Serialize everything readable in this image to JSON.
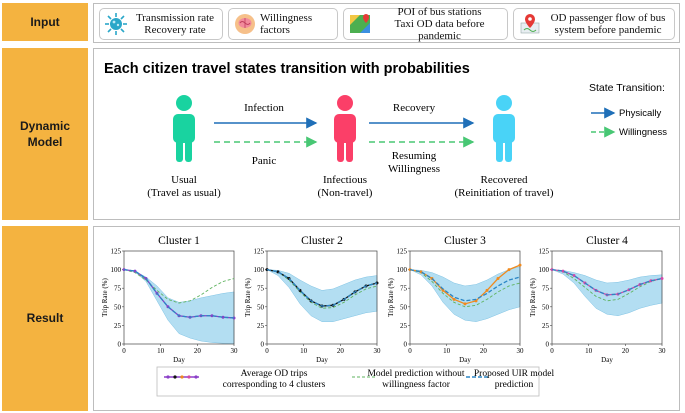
{
  "labels": {
    "input": "Input",
    "dynamic_model": "Dynamic Model",
    "result": "Result"
  },
  "inputs": [
    {
      "icon": "virus-icon",
      "line1": "Transmission rate",
      "line2": "Recovery rate"
    },
    {
      "icon": "brain-icon",
      "line1": "Willingness factors",
      "line2": ""
    },
    {
      "icon": "map-icon",
      "line1": "POI of bus stations",
      "line2": "Taxi OD data before pandemic"
    },
    {
      "icon": "location-pin-icon",
      "line1": "OD passenger flow of bus",
      "line2": "system before pandemic"
    }
  ],
  "model": {
    "title": "Each citizen travel states transition with probabilities",
    "states": [
      {
        "name": "Usual",
        "sub": "(Travel as usual)",
        "color": "#19d3a0"
      },
      {
        "name": "Infectious",
        "sub": "(Non-travel)",
        "color": "#fb3f68"
      },
      {
        "name": "Recovered",
        "sub": "(Reinitiation of travel)",
        "color": "#49d3f7"
      }
    ],
    "transitions": {
      "infection": "Infection",
      "panic": "Panic",
      "recovery": "Recovery",
      "resuming_line1": "Resuming",
      "resuming_line2": "Willingness"
    },
    "legend": {
      "title": "State Transition:",
      "physically": "Physically",
      "willingness": "Willingness"
    },
    "colors": {
      "physical": "#1f6fb8",
      "willingness": "#48c774"
    }
  },
  "legend_result": {
    "avg_line1": "Average OD trips",
    "avg_line2": "corresponding to 4 clusters",
    "pred_line1": "Model prediction without",
    "pred_line2": "willingness factor",
    "uir_line1": "Proposed UIR model",
    "uir_line2": "prediction"
  },
  "chart_data": [
    {
      "type": "line",
      "title": "Cluster 1",
      "xlabel": "Day",
      "ylabel": "Trip Rate (%)",
      "xlim": [
        0,
        30
      ],
      "ylim": [
        0,
        125
      ],
      "xticks": [
        0,
        10,
        20,
        30
      ],
      "yticks": [
        0,
        25,
        50,
        75,
        100,
        125
      ],
      "avg_color": "#8b3fc8",
      "series": [
        {
          "name": "Average OD trips",
          "x": [
            0,
            3,
            6,
            9,
            12,
            15,
            18,
            21,
            24,
            27,
            30
          ],
          "values": [
            100,
            98,
            88,
            68,
            50,
            38,
            36,
            38,
            38,
            36,
            35
          ]
        },
        {
          "name": "Model prediction without willingness factor",
          "x": [
            0,
            3,
            6,
            9,
            12,
            15,
            18,
            21,
            24,
            27,
            30
          ],
          "values": [
            100,
            96,
            86,
            72,
            60,
            55,
            58,
            66,
            76,
            84,
            88
          ]
        },
        {
          "name": "Proposed UIR model prediction",
          "x": [
            0,
            3,
            6,
            9,
            12,
            15,
            18,
            21,
            24,
            27,
            30
          ],
          "values": [
            100,
            98,
            88,
            68,
            50,
            38,
            36,
            38,
            38,
            36,
            35
          ]
        }
      ],
      "band": {
        "upper": [
          100,
          98,
          90,
          78,
          62,
          56,
          58,
          62,
          65,
          68,
          70
        ],
        "lower": [
          100,
          97,
          84,
          58,
          32,
          14,
          8,
          4,
          2,
          1,
          0
        ]
      }
    },
    {
      "type": "line",
      "title": "Cluster 2",
      "xlabel": "Day",
      "ylabel": "Trip Rate (%)",
      "xlim": [
        0,
        30
      ],
      "ylim": [
        0,
        125
      ],
      "xticks": [
        0,
        10,
        20,
        30
      ],
      "yticks": [
        0,
        25,
        50,
        75,
        100,
        125
      ],
      "avg_color": "#111111",
      "series": [
        {
          "name": "Average OD trips",
          "x": [
            0,
            3,
            6,
            9,
            12,
            15,
            18,
            21,
            24,
            27,
            30
          ],
          "values": [
            100,
            97,
            88,
            72,
            58,
            51,
            52,
            60,
            70,
            78,
            82
          ]
        },
        {
          "name": "Model prediction without willingness factor",
          "x": [
            0,
            3,
            6,
            9,
            12,
            15,
            18,
            21,
            24,
            27,
            30
          ],
          "values": [
            100,
            97,
            86,
            70,
            56,
            48,
            49,
            56,
            66,
            74,
            78
          ]
        },
        {
          "name": "Proposed UIR model prediction",
          "x": [
            0,
            3,
            6,
            9,
            12,
            15,
            18,
            21,
            24,
            27,
            30
          ],
          "values": [
            100,
            97,
            88,
            72,
            58,
            51,
            52,
            60,
            70,
            78,
            82
          ]
        }
      ],
      "band": {
        "upper": [
          100,
          99,
          95,
          86,
          78,
          72,
          74,
          80,
          86,
          90,
          92
        ],
        "lower": [
          100,
          92,
          76,
          54,
          38,
          30,
          30,
          34,
          38,
          42,
          44
        ]
      }
    },
    {
      "type": "line",
      "title": "Cluster 3",
      "xlabel": "Day",
      "ylabel": "Trip Rate (%)",
      "xlim": [
        0,
        30
      ],
      "ylim": [
        0,
        125
      ],
      "xticks": [
        0,
        10,
        20,
        30
      ],
      "yticks": [
        0,
        25,
        50,
        75,
        100,
        125
      ],
      "avg_color": "#f08a1e",
      "series": [
        {
          "name": "Average OD trips",
          "x": [
            0,
            3,
            6,
            9,
            12,
            15,
            18,
            21,
            24,
            27,
            30
          ],
          "values": [
            100,
            97,
            88,
            72,
            60,
            54,
            58,
            72,
            88,
            100,
            106
          ]
        },
        {
          "name": "Model prediction without willingness factor",
          "x": [
            0,
            3,
            6,
            9,
            12,
            15,
            18,
            21,
            24,
            27,
            30
          ],
          "values": [
            100,
            96,
            84,
            68,
            56,
            50,
            52,
            60,
            70,
            78,
            82
          ]
        },
        {
          "name": "Proposed UIR model prediction",
          "x": [
            0,
            3,
            6,
            9,
            12,
            15,
            18,
            21,
            24,
            27,
            30
          ],
          "values": [
            100,
            97,
            88,
            74,
            63,
            58,
            60,
            68,
            78,
            86,
            90
          ]
        }
      ],
      "band": {
        "upper": [
          100,
          99,
          96,
          90,
          82,
          78,
          80,
          86,
          94,
          100,
          104
        ],
        "lower": [
          100,
          93,
          78,
          56,
          40,
          32,
          30,
          34,
          40,
          46,
          50
        ]
      }
    },
    {
      "type": "line",
      "title": "Cluster 4",
      "xlabel": "Day",
      "ylabel": "Trip Rate (%)",
      "xlim": [
        0,
        30
      ],
      "ylim": [
        0,
        125
      ],
      "xticks": [
        0,
        10,
        20,
        30
      ],
      "yticks": [
        0,
        25,
        50,
        75,
        100,
        125
      ],
      "avg_color": "#d24aa8",
      "series": [
        {
          "name": "Average OD trips",
          "x": [
            0,
            3,
            6,
            9,
            12,
            15,
            18,
            21,
            24,
            27,
            30
          ],
          "values": [
            100,
            98,
            92,
            82,
            72,
            66,
            67,
            73,
            80,
            85,
            88
          ]
        },
        {
          "name": "Model prediction without willingness factor",
          "x": [
            0,
            3,
            6,
            9,
            12,
            15,
            18,
            21,
            24,
            27,
            30
          ],
          "values": [
            100,
            97,
            88,
            76,
            64,
            58,
            60,
            68,
            77,
            84,
            88
          ]
        },
        {
          "name": "Proposed UIR model prediction",
          "x": [
            0,
            3,
            6,
            9,
            12,
            15,
            18,
            21,
            24,
            27,
            30
          ],
          "values": [
            100,
            98,
            92,
            82,
            72,
            66,
            67,
            73,
            80,
            85,
            88
          ]
        }
      ],
      "band": {
        "upper": [
          100,
          99,
          96,
          92,
          86,
          82,
          83,
          86,
          90,
          92,
          93
        ],
        "lower": [
          100,
          94,
          82,
          64,
          48,
          40,
          38,
          42,
          48,
          52,
          55
        ]
      }
    }
  ]
}
